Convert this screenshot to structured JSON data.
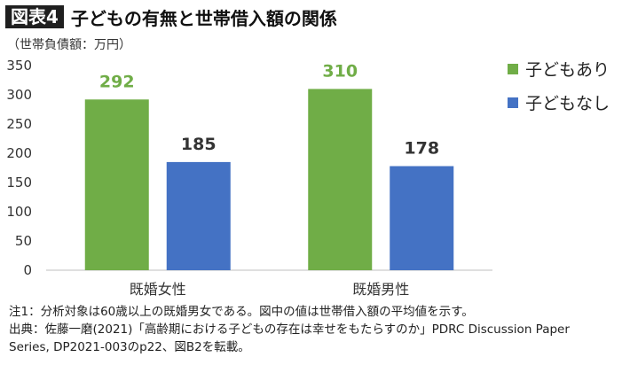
{
  "figure_badge": "図表4",
  "figure_title": "子どもの有無と世帯借入額の関係",
  "unit_label": "（世帯負債額：万円）",
  "notes": [
    "注1：分析対象は60歳以上の既婚男女である。図中の値は世帯借入額の平均値を示す。",
    "出典：佐藤一磨(2021)「高齢期における子どもの存在は幸せをもたらすのか」PDRC Discussion Paper",
    "Series, DP2021-003のp22、図B2を転載。"
  ],
  "chart_data": {
    "type": "bar",
    "categories": [
      "既婚女性",
      "既婚男性"
    ],
    "series": [
      {
        "name": "子どもあり",
        "values": [
          292,
          310
        ],
        "color": "#70ad47"
      },
      {
        "name": "子どもなし",
        "values": [
          185,
          178
        ],
        "color": "#4472c4"
      }
    ],
    "ylim": [
      0,
      350
    ],
    "yticks": [
      0,
      50,
      100,
      150,
      200,
      250,
      300,
      350
    ],
    "grid": false,
    "legend": "right",
    "data_labels": true,
    "label_colors": [
      "#70ad47",
      "#333333"
    ]
  }
}
